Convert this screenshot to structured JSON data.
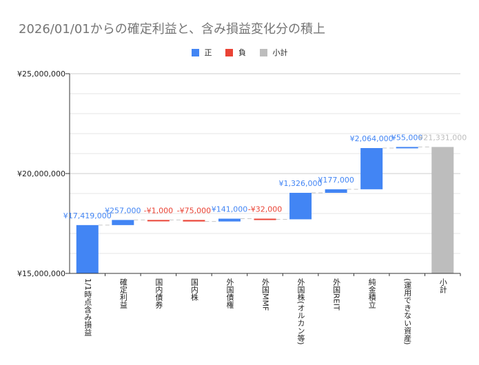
{
  "chart_data": {
    "type": "waterfall",
    "title": "2026/01/01からの確定利益と、含み損益変化分の積上",
    "legend": [
      {
        "name": "正",
        "color": "#4285f4"
      },
      {
        "name": "負",
        "color": "#ea4335"
      },
      {
        "name": "小計",
        "color": "#bdbdbd"
      }
    ],
    "legend_position": "top",
    "categories": [
      "1/1時点含み損益",
      "確定利益",
      "国内債券",
      "国内株",
      "外国債権",
      "外国MMF",
      "外国株(オルカン等)",
      "外国REIT",
      "純金積立",
      "(運用できない資産)",
      "小計"
    ],
    "values": [
      17419000,
      257000,
      -1000,
      -75000,
      141000,
      -32000,
      1326000,
      177000,
      2064000,
      55000,
      21331000
    ],
    "kinds": [
      "positive",
      "positive",
      "negative",
      "negative",
      "positive",
      "negative",
      "positive",
      "positive",
      "positive",
      "positive",
      "subtotal"
    ],
    "data_labels": [
      "¥17,419,000",
      "¥257,000",
      "-¥1,000",
      "-¥75,000",
      "¥141,000",
      "-¥32,000",
      "¥1,326,000",
      "¥177,000",
      "¥2,064,000",
      "¥55,000",
      "¥21,331,000"
    ],
    "ylim": [
      15000000,
      25000000
    ],
    "yticks": [
      15000000,
      20000000,
      25000000
    ],
    "ytick_labels": [
      "¥15,000,000",
      "¥20,000,000",
      "¥25,000,000"
    ],
    "minor_grid_step": 1000000,
    "grid": true
  }
}
